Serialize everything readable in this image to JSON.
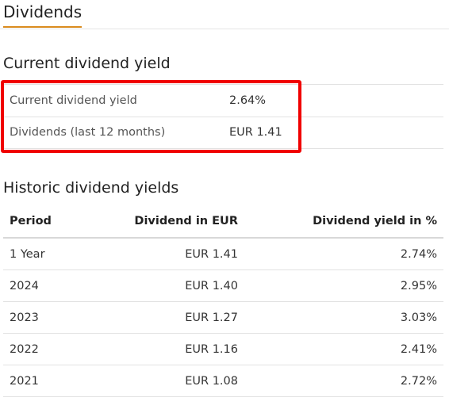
{
  "header": {
    "tab_title": "Dividends"
  },
  "current": {
    "title": "Current dividend yield",
    "rows": [
      {
        "label": "Current dividend yield",
        "value": "2.64%"
      },
      {
        "label": "Dividends (last 12 months)",
        "value": "EUR 1.41"
      }
    ],
    "highlight_color": "#f00000"
  },
  "historic": {
    "title": "Historic dividend yields",
    "columns": {
      "period": "Period",
      "dividend": "Dividend in EUR",
      "yield": "Dividend yield in %"
    },
    "rows": [
      {
        "period": "1 Year",
        "dividend": "EUR 1.41",
        "yield": "2.74%"
      },
      {
        "period": "2024",
        "dividend": "EUR 1.40",
        "yield": "2.95%"
      },
      {
        "period": "2023",
        "dividend": "EUR 1.27",
        "yield": "3.03%"
      },
      {
        "period": "2022",
        "dividend": "EUR 1.16",
        "yield": "2.41%"
      },
      {
        "period": "2021",
        "dividend": "EUR 1.08",
        "yield": "2.72%"
      }
    ]
  },
  "colors": {
    "accent": "#d98b1e"
  }
}
